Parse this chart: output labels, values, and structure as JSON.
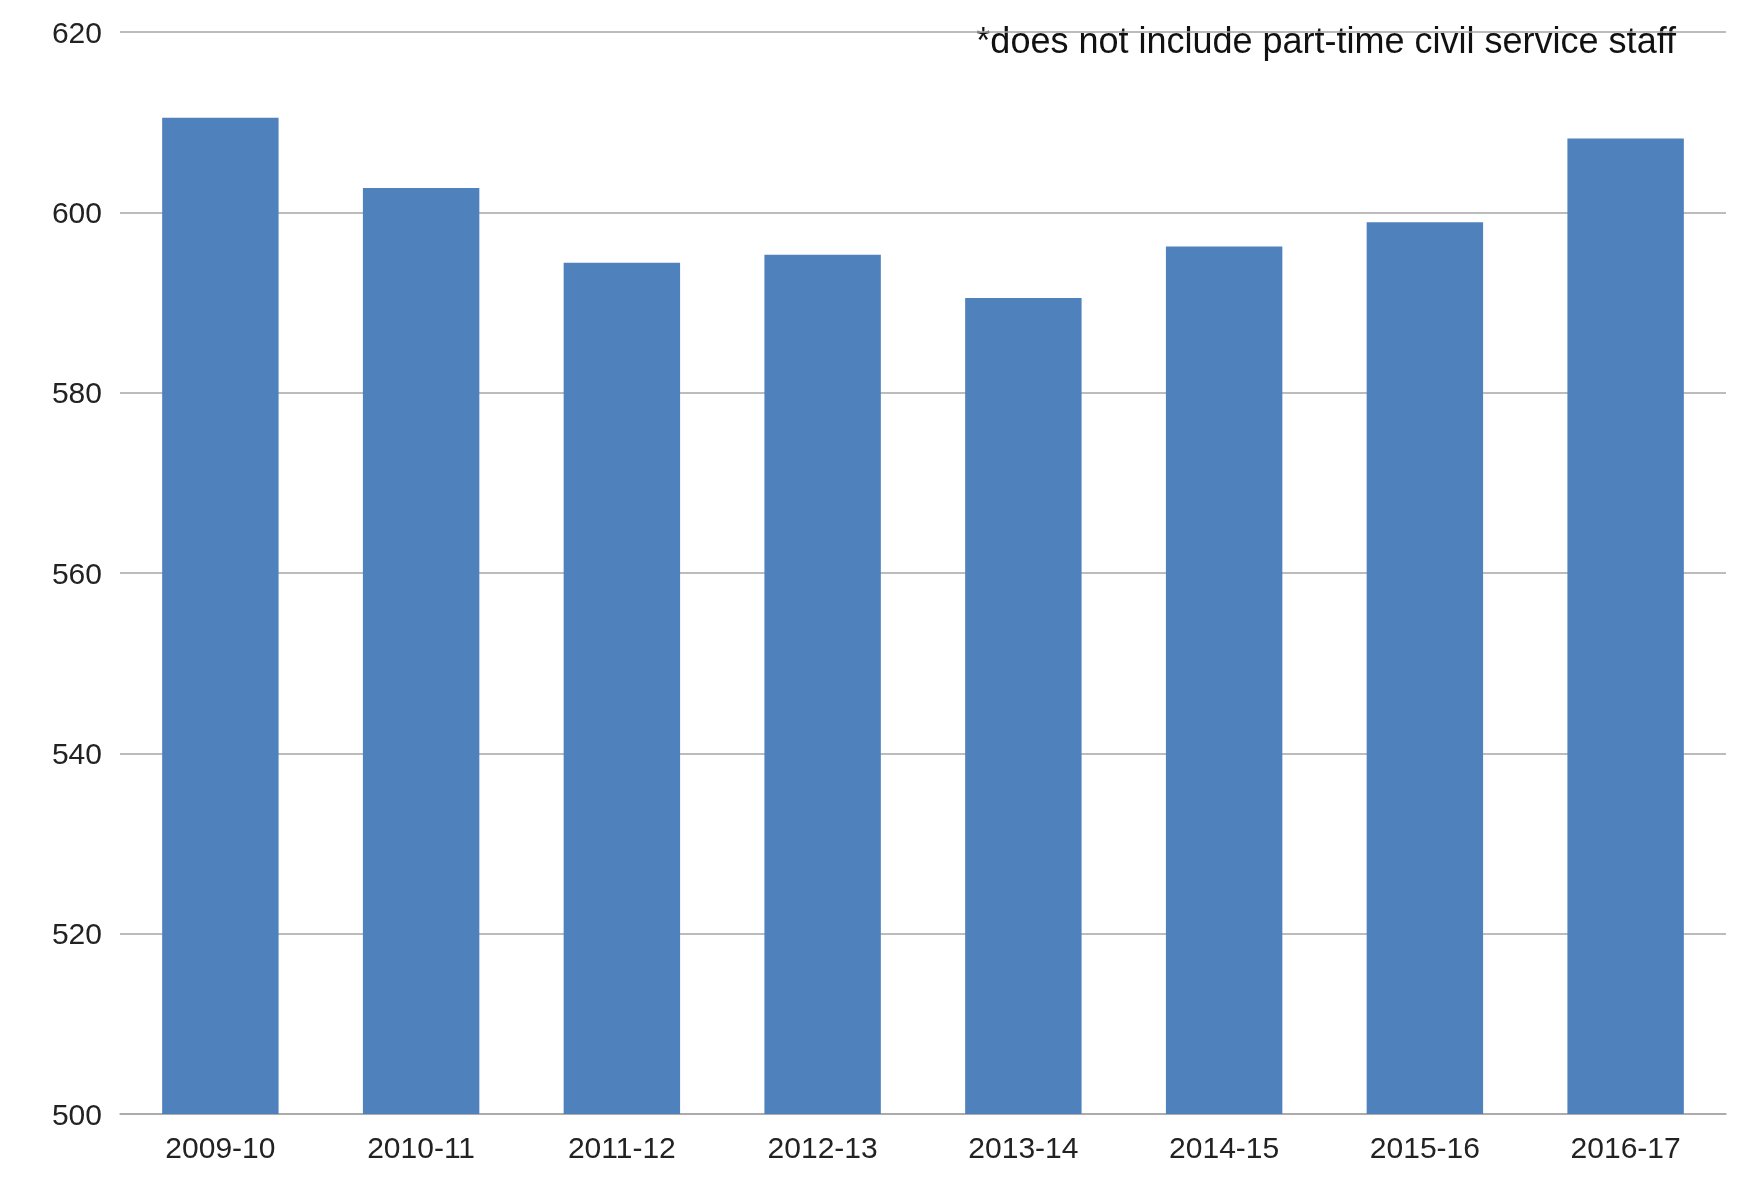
{
  "chart_data": {
    "type": "bar",
    "categories": [
      "2009-10",
      "2010-11",
      "2011-12",
      "2012-13",
      "2013-14",
      "2014-15",
      "2015-16",
      "2016-17"
    ],
    "values": [
      610.5,
      602.7,
      594.4,
      595.3,
      590.5,
      596.2,
      598.9,
      608.2
    ],
    "color": "#4f81bd",
    "ylim": [
      500,
      620
    ],
    "yticks": [
      500,
      520,
      540,
      560,
      580,
      600,
      620
    ],
    "grid": "y",
    "annotations": [
      "*does not include part-time civil service staff"
    ]
  }
}
